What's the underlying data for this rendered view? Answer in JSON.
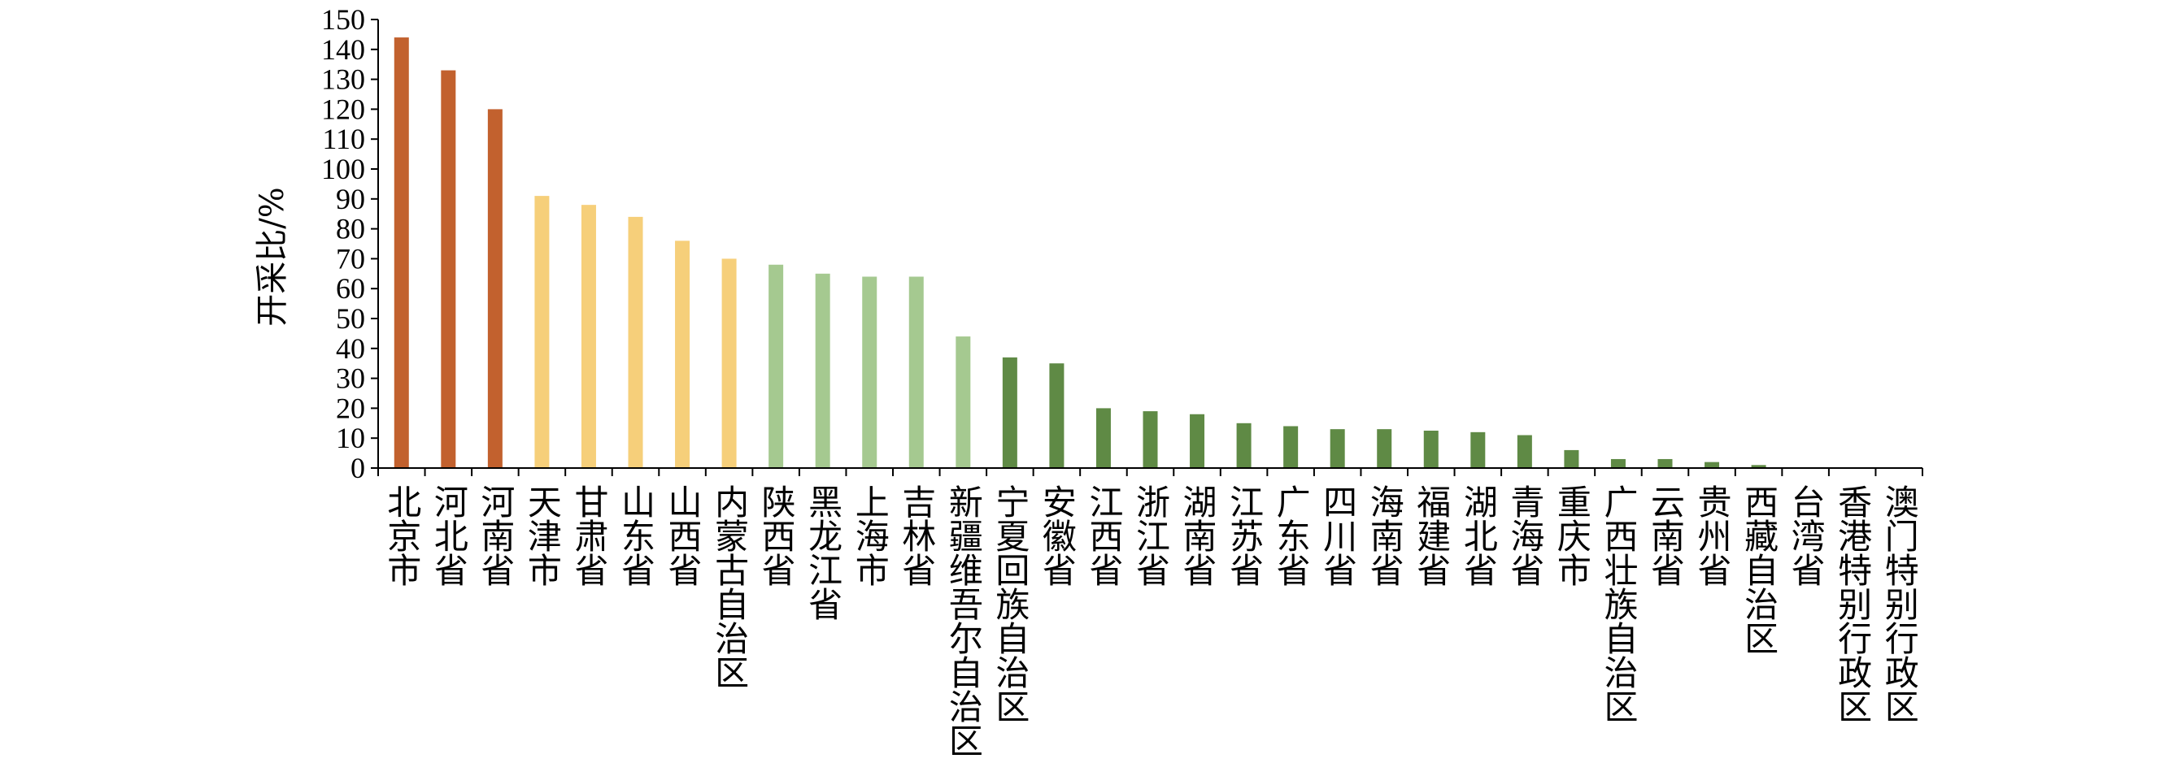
{
  "chart_data": {
    "type": "bar",
    "ylabel": "开采比/%",
    "ylim": [
      0,
      150
    ],
    "yticks": [
      0,
      10,
      20,
      30,
      40,
      50,
      60,
      70,
      80,
      90,
      100,
      110,
      120,
      130,
      140,
      150
    ],
    "grid": false,
    "legend": "none",
    "categories": [
      "北京市",
      "河北省",
      "河南省",
      "天津市",
      "甘肃省",
      "山东省",
      "山西省",
      "内蒙古自治区",
      "陕西省",
      "黑龙江省",
      "上海市",
      "吉林省",
      "新疆维吾尔自治区",
      "宁夏回族自治区",
      "安徽省",
      "江西省",
      "浙江省",
      "湖南省",
      "江苏省",
      "广东省",
      "四川省",
      "海南省",
      "福建省",
      "湖北省",
      "青海省",
      "重庆市",
      "广西壮族自治区",
      "云南省",
      "贵州省",
      "西藏自治区",
      "台湾省",
      "香港特别行政区",
      "澳门特别行政区"
    ],
    "values": [
      144,
      133,
      120,
      91,
      88,
      84,
      76,
      70,
      68,
      65,
      64,
      64,
      44,
      37,
      35,
      20,
      19,
      18,
      15,
      14,
      13,
      13,
      12.5,
      12,
      11,
      6,
      3,
      3,
      2,
      1,
      0,
      0,
      0
    ],
    "bar_colors": [
      "#C2612E",
      "#C2612E",
      "#C2612E",
      "#F6CF7A",
      "#F6CF7A",
      "#F6CF7A",
      "#F6CF7A",
      "#F6CF7A",
      "#A5C990",
      "#A5C990",
      "#A5C990",
      "#A5C990",
      "#A5C990",
      "#5F8A45",
      "#5F8A45",
      "#5F8A45",
      "#5F8A45",
      "#5F8A45",
      "#5F8A45",
      "#5F8A45",
      "#5F8A45",
      "#5F8A45",
      "#5F8A45",
      "#5F8A45",
      "#5F8A45",
      "#5F8A45",
      "#5F8A45",
      "#5F8A45",
      "#5F8A45",
      "#5F8A45",
      "#5F8A45",
      "#5F8A45",
      "#5F8A45"
    ]
  }
}
